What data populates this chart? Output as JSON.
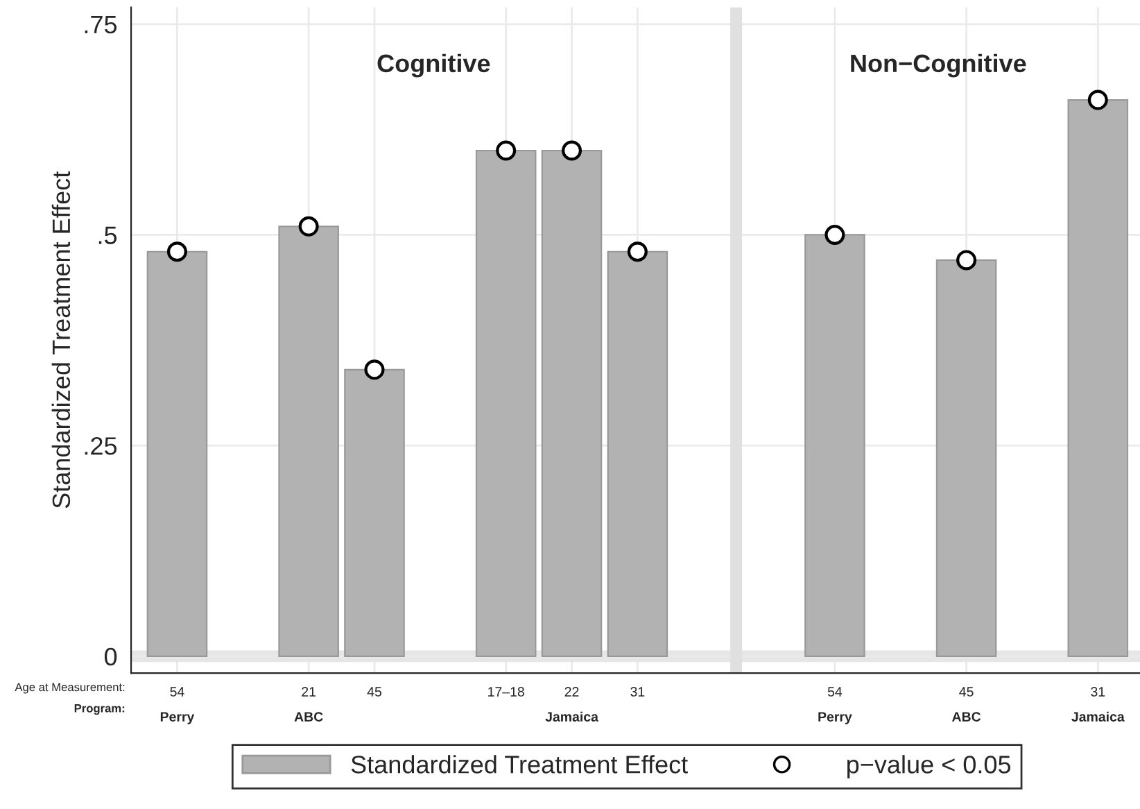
{
  "chart_data": {
    "type": "bar",
    "ylabel": "Standardized Treatment Effect",
    "categories": [
      "54\nPerry",
      null,
      "21\nABC",
      "45",
      null,
      "17–18",
      "22\nJamaica",
      "31",
      null,
      null,
      "54\nPerry",
      null,
      "45\nABC",
      null,
      "31\nJamaica"
    ],
    "series": [
      {
        "name": "Standardized Treatment Effect",
        "color": "#b2b2b2",
        "values": [
          0.48,
          null,
          0.51,
          0.34,
          null,
          0.6,
          0.6,
          0.48,
          null,
          null,
          0.5,
          null,
          0.47,
          null,
          0.66
        ]
      },
      {
        "name": "p−value < 0.05",
        "type": "scatter",
        "color": "#ffffff",
        "values": [
          0.48,
          null,
          0.51,
          0.34,
          null,
          0.6,
          0.6,
          0.48,
          null,
          null,
          0.5,
          null,
          0.47,
          null,
          0.66
        ]
      }
    ],
    "ylim": [
      -0.02,
      0.77
    ],
    "yticks": [
      {
        "value": 0,
        "label": "0"
      },
      {
        "value": 0.25,
        "label": ".25"
      },
      {
        "value": 0.5,
        "label": ".5"
      },
      {
        "value": 0.75,
        "label": ".75"
      }
    ],
    "annotations": [
      "Cognitive",
      "Non−Cognitive",
      "Age at Measurement:",
      "Program:"
    ],
    "grid": true,
    "marker": "circle",
    "legend": "bottom"
  }
}
